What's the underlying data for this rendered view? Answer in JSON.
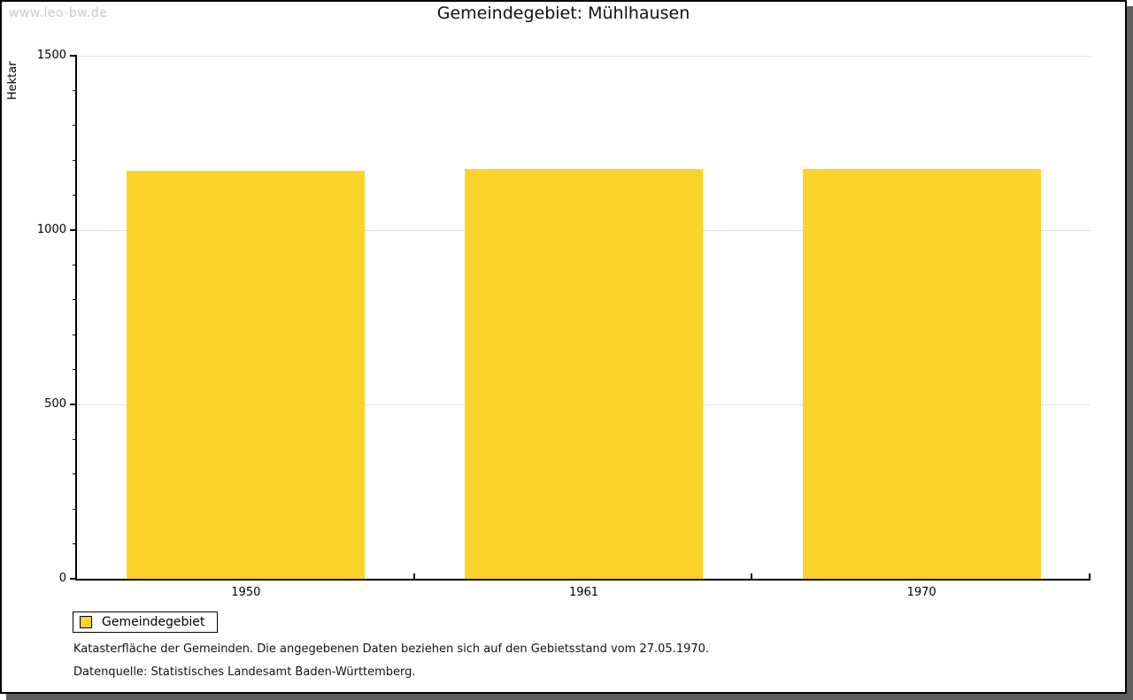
{
  "watermark": "www.leo-bw.de",
  "title": "Gemeindegebiet: Mühlhausen",
  "chart_data": {
    "type": "bar",
    "categories": [
      "1950",
      "1961",
      "1970"
    ],
    "series": [
      {
        "name": "Gemeindegebiet",
        "values": [
          1169,
          1174,
          1174
        ],
        "color": "#FCD32B"
      }
    ],
    "title": "Gemeindegebiet: Mühlhausen",
    "xlabel": "",
    "ylabel": "Hektar",
    "ylim": [
      0,
      1500
    ],
    "ytick_major_step": 500,
    "ytick_minor_step": 100,
    "ytick_labels": [
      "0",
      "500",
      "1000",
      "1500"
    ],
    "grid": true,
    "legend_position": "bottom-left"
  },
  "legend": {
    "items": [
      {
        "label": "Gemeindegebiet",
        "color": "#FCD32B"
      }
    ]
  },
  "footer": {
    "line1": "Katasterfläche der Gemeinden. Die angegebenen Daten beziehen sich auf den Gebietsstand vom 27.05.1970.",
    "line2": "Datenquelle: Statistisches Landesamt Baden-Württemberg."
  },
  "colors": {
    "bar": "#FCD32B",
    "grid": "#e2e2e2",
    "axis": "#000000",
    "watermark": "#c9c9c9",
    "frame_shadow": "#5e5e5e"
  }
}
